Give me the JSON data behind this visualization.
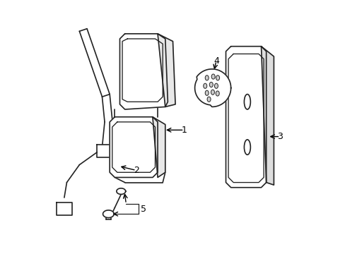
{
  "background_color": "#ffffff",
  "line_color": "#222222",
  "line_width": 1.2,
  "fig_width": 4.89,
  "fig_height": 3.6,
  "dpi": 100
}
